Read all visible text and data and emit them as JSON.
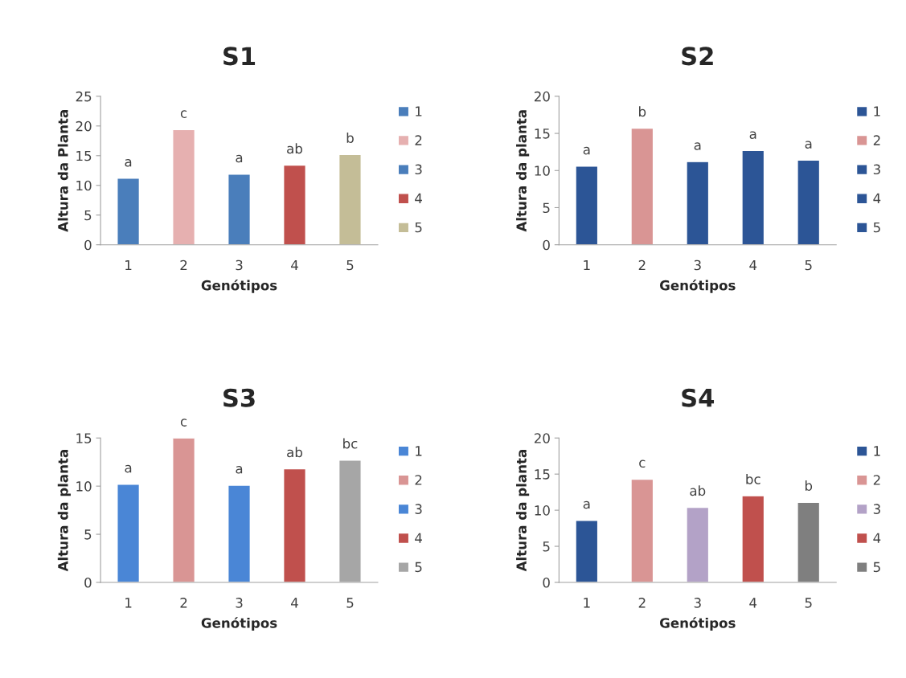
{
  "chart_data": [
    {
      "type": "bar",
      "title": "S1",
      "xlabel": "Genótipos",
      "ylabel": "Altura da Planta",
      "categories": [
        "1",
        "2",
        "3",
        "4",
        "5"
      ],
      "series": [
        {
          "name": "1",
          "color": "#4a7ebb",
          "values": [
            11.2,
            null,
            null,
            null,
            null
          ],
          "value_labels": [
            "a",
            null,
            null,
            null,
            null
          ]
        },
        {
          "name": "2",
          "color": "#e6b0b0",
          "values": [
            null,
            19.4,
            null,
            null,
            null
          ],
          "value_labels": [
            null,
            "c",
            null,
            null,
            null
          ]
        },
        {
          "name": "3",
          "color": "#4a7ebb",
          "values": [
            null,
            null,
            11.9,
            null,
            null
          ],
          "value_labels": [
            null,
            null,
            "a",
            null,
            null
          ]
        },
        {
          "name": "4",
          "color": "#c0504d",
          "values": [
            null,
            null,
            null,
            13.4,
            null
          ],
          "value_labels": [
            null,
            null,
            null,
            "ab",
            null
          ]
        },
        {
          "name": "5",
          "color": "#c4bd97",
          "values": [
            null,
            null,
            null,
            null,
            15.2
          ],
          "value_labels": [
            null,
            null,
            null,
            null,
            "b"
          ]
        }
      ],
      "ylim": [
        0,
        25
      ],
      "yticks": [
        0,
        5,
        10,
        15,
        20,
        25
      ],
      "legend": "right"
    },
    {
      "type": "bar",
      "title": "S2",
      "xlabel": "Genótipos",
      "ylabel": "Altura da planta",
      "categories": [
        "1",
        "2",
        "3",
        "4",
        "5"
      ],
      "series": [
        {
          "name": "1",
          "color": "#2c5596",
          "values": [
            10.6,
            null,
            null,
            null,
            null
          ],
          "value_labels": [
            "a",
            null,
            null,
            null,
            null
          ]
        },
        {
          "name": "2",
          "color": "#d99594",
          "values": [
            null,
            15.7,
            null,
            null,
            null
          ],
          "value_labels": [
            null,
            "b",
            null,
            null,
            null
          ]
        },
        {
          "name": "3",
          "color": "#2c5596",
          "values": [
            null,
            null,
            11.2,
            null,
            null
          ],
          "value_labels": [
            null,
            null,
            "a",
            null,
            null
          ]
        },
        {
          "name": "4",
          "color": "#2c5596",
          "values": [
            null,
            null,
            null,
            12.7,
            null
          ],
          "value_labels": [
            null,
            null,
            null,
            "a",
            null
          ]
        },
        {
          "name": "5",
          "color": "#2c5596",
          "values": [
            null,
            null,
            null,
            null,
            11.4
          ],
          "value_labels": [
            null,
            null,
            null,
            null,
            "a"
          ]
        }
      ],
      "ylim": [
        0,
        20
      ],
      "yticks": [
        0,
        5,
        10,
        15,
        20
      ],
      "legend": "right"
    },
    {
      "type": "bar",
      "title": "S3",
      "xlabel": "Genótipos",
      "ylabel": "Altura da planta",
      "categories": [
        "1",
        "2",
        "3",
        "4",
        "5"
      ],
      "series": [
        {
          "name": "1",
          "color": "#4a86d6",
          "values": [
            10.2,
            null,
            null,
            null,
            null
          ],
          "value_labels": [
            "a",
            null,
            null,
            null,
            null
          ]
        },
        {
          "name": "2",
          "color": "#d99594",
          "values": [
            null,
            15.0,
            null,
            null,
            null
          ],
          "value_labels": [
            null,
            "c",
            null,
            null,
            null
          ]
        },
        {
          "name": "3",
          "color": "#4a86d6",
          "values": [
            null,
            null,
            10.1,
            null,
            null
          ],
          "value_labels": [
            null,
            null,
            "a",
            null,
            null
          ]
        },
        {
          "name": "4",
          "color": "#c0504d",
          "values": [
            null,
            null,
            null,
            11.8,
            null
          ],
          "value_labels": [
            null,
            null,
            null,
            "ab",
            null
          ]
        },
        {
          "name": "5",
          "color": "#a6a6a6",
          "values": [
            null,
            null,
            null,
            null,
            12.7
          ],
          "value_labels": [
            null,
            null,
            null,
            null,
            "bc"
          ]
        }
      ],
      "ylim": [
        0,
        15
      ],
      "yticks": [
        0,
        5,
        10,
        15
      ],
      "legend": "right"
    },
    {
      "type": "bar",
      "title": "S4",
      "xlabel": "Genótipos",
      "ylabel": "Altura da planta",
      "categories": [
        "1",
        "2",
        "3",
        "4",
        "5"
      ],
      "series": [
        {
          "name": "1",
          "color": "#2c5596",
          "values": [
            8.6,
            null,
            null,
            null,
            null
          ],
          "value_labels": [
            "a",
            null,
            null,
            null,
            null
          ]
        },
        {
          "name": "2",
          "color": "#d99594",
          "values": [
            null,
            14.3,
            null,
            null,
            null
          ],
          "value_labels": [
            null,
            "c",
            null,
            null,
            null
          ]
        },
        {
          "name": "3",
          "color": "#b3a2c7",
          "values": [
            null,
            null,
            10.4,
            null,
            null
          ],
          "value_labels": [
            null,
            null,
            "ab",
            null,
            null
          ]
        },
        {
          "name": "4",
          "color": "#c0504d",
          "values": [
            null,
            null,
            null,
            12.0,
            null
          ],
          "value_labels": [
            null,
            null,
            null,
            "bc",
            null
          ]
        },
        {
          "name": "5",
          "color": "#7f7f7f",
          "values": [
            null,
            null,
            null,
            null,
            11.1
          ],
          "value_labels": [
            null,
            null,
            null,
            null,
            "b"
          ]
        }
      ],
      "ylim": [
        0,
        20
      ],
      "yticks": [
        0,
        5,
        10,
        15,
        20
      ],
      "legend": "right"
    }
  ]
}
